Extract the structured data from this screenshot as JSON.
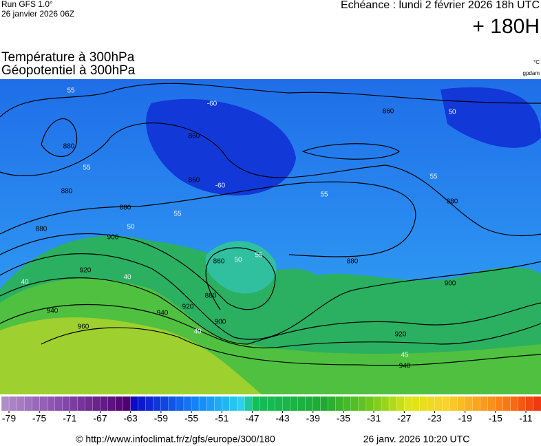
{
  "header": {
    "run": "Run GFS 1.0°",
    "run_date": "26 janvier 2026 06Z",
    "valid": "Echéance : lundi 2 février 2026 18h UTC",
    "lead": "+ 180H",
    "title_temp": "Température à 300hPa",
    "title_geo": "Géopotentiel à 300hPa",
    "unit_temp": "°C",
    "unit_geo": "gpdam"
  },
  "map": {
    "geopotential_labels": [
      880,
      880,
      880,
      880,
      860,
      860,
      900,
      920,
      940,
      960,
      920,
      940,
      880,
      900,
      860,
      860,
      880,
      880,
      900,
      920,
      940
    ],
    "temperature_labels": [
      55,
      -60,
      -60,
      55,
      50,
      55,
      55,
      55,
      50,
      40,
      40,
      50,
      55,
      45,
      40
    ]
  },
  "colorbar": {
    "ticks": [
      -79,
      -75,
      -71,
      -67,
      -63,
      -59,
      -55,
      -51,
      -47,
      -43,
      -39,
      -35,
      -31,
      -27,
      -23,
      -19,
      -15,
      -11
    ]
  },
  "footer": {
    "source": "© http://www.infoclimat.fr/z/gfs/europe/300/180",
    "generated": "26 janv. 2026 10:20 UTC"
  }
}
